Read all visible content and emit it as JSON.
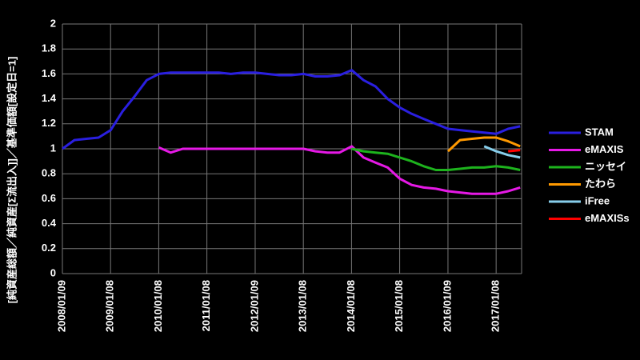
{
  "chart_data": {
    "type": "line",
    "y_label": "[純資産総額／純資産[Σ流出入]]／基準価額[設定日=1]",
    "x": [
      "2008/01/09",
      "2008/04/09",
      "2008/07/09",
      "2008/10/09",
      "2009/01/09",
      "2009/04/09",
      "2009/07/09",
      "2009/10/09",
      "2010/01/09",
      "2010/04/09",
      "2010/07/09",
      "2010/10/09",
      "2011/01/09",
      "2011/04/09",
      "2011/07/09",
      "2011/10/09",
      "2012/01/09",
      "2012/04/09",
      "2012/07/09",
      "2012/10/09",
      "2013/01/09",
      "2013/04/09",
      "2013/07/09",
      "2013/10/09",
      "2014/01/09",
      "2014/04/09",
      "2014/07/09",
      "2014/10/09",
      "2015/01/09",
      "2015/04/09",
      "2015/07/09",
      "2015/10/09",
      "2016/01/09",
      "2016/04/09",
      "2016/07/09",
      "2016/10/09",
      "2017/01/09",
      "2017/04/09",
      "2017/07/09"
    ],
    "series": [
      {
        "name": "STAM",
        "color": "#2a1fe0",
        "values": [
          1.0,
          1.07,
          1.08,
          1.09,
          1.15,
          1.3,
          1.42,
          1.55,
          1.6,
          1.61,
          1.61,
          1.61,
          1.61,
          1.61,
          1.6,
          1.61,
          1.61,
          1.6,
          1.59,
          1.59,
          1.6,
          1.58,
          1.58,
          1.59,
          1.63,
          1.55,
          1.5,
          1.4,
          1.33,
          1.28,
          1.24,
          1.2,
          1.16,
          1.15,
          1.14,
          1.13,
          1.12,
          1.16,
          1.18
        ]
      },
      {
        "name": "eMAXIS",
        "color": "#e619e6",
        "values": [
          null,
          null,
          null,
          null,
          null,
          null,
          null,
          null,
          1.01,
          0.97,
          1.0,
          1.0,
          1.0,
          1.0,
          1.0,
          1.0,
          1.0,
          1.0,
          1.0,
          1.0,
          1.0,
          0.98,
          0.97,
          0.97,
          1.02,
          0.93,
          0.89,
          0.85,
          0.76,
          0.71,
          0.69,
          0.68,
          0.66,
          0.65,
          0.64,
          0.64,
          0.64,
          0.66,
          0.69
        ]
      },
      {
        "name": "ニッセイ",
        "color": "#1db31d",
        "values": [
          null,
          null,
          null,
          null,
          null,
          null,
          null,
          null,
          null,
          null,
          null,
          null,
          null,
          null,
          null,
          null,
          null,
          null,
          null,
          null,
          null,
          null,
          null,
          null,
          1.0,
          0.98,
          0.97,
          0.96,
          0.93,
          0.9,
          0.86,
          0.83,
          0.83,
          0.84,
          0.85,
          0.85,
          0.86,
          0.85,
          0.83
        ]
      },
      {
        "name": "たわら",
        "color": "#ff9900",
        "values": [
          null,
          null,
          null,
          null,
          null,
          null,
          null,
          null,
          null,
          null,
          null,
          null,
          null,
          null,
          null,
          null,
          null,
          null,
          null,
          null,
          null,
          null,
          null,
          null,
          null,
          null,
          null,
          null,
          null,
          null,
          null,
          null,
          0.98,
          1.07,
          1.08,
          1.09,
          1.09,
          1.06,
          1.02
        ]
      },
      {
        "name": "iFree",
        "color": "#87ceeb",
        "values": [
          null,
          null,
          null,
          null,
          null,
          null,
          null,
          null,
          null,
          null,
          null,
          null,
          null,
          null,
          null,
          null,
          null,
          null,
          null,
          null,
          null,
          null,
          null,
          null,
          null,
          null,
          null,
          null,
          null,
          null,
          null,
          null,
          null,
          null,
          null,
          1.02,
          0.98,
          0.95,
          0.93
        ]
      },
      {
        "name": "eMAXISs",
        "color": "#ff0000",
        "values": [
          null,
          null,
          null,
          null,
          null,
          null,
          null,
          null,
          null,
          null,
          null,
          null,
          null,
          null,
          null,
          null,
          null,
          null,
          null,
          null,
          null,
          null,
          null,
          null,
          null,
          null,
          null,
          null,
          null,
          null,
          null,
          null,
          null,
          null,
          null,
          null,
          null,
          0.98,
          0.99
        ]
      }
    ],
    "xlim": [
      "2008/01/09",
      "2017/07/20"
    ],
    "xticks": [
      "2008/01/09",
      "2009/01/08",
      "2010/01/08",
      "2011/01/08",
      "2012/01/09",
      "2013/01/08",
      "2014/01/08",
      "2015/01/08",
      "2016/01/09",
      "2017/01/08"
    ],
    "ylim": [
      0,
      2
    ],
    "yticks": [
      0,
      0.2,
      0.4,
      0.6,
      0.8,
      1,
      1.2,
      1.4,
      1.6,
      1.8,
      2
    ],
    "grid": true,
    "legend": "right"
  }
}
